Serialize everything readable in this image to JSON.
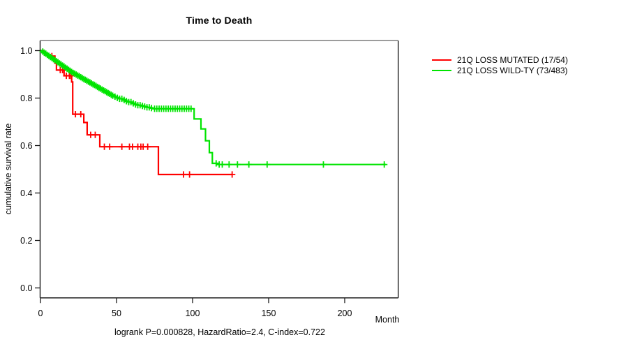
{
  "title": "Time to Death",
  "footer": "logrank P=0.000828, HazardRatio=2.4, C-index=0.722",
  "chart_data": {
    "type": "line",
    "variant": "kaplan-meier-step",
    "title": "Time to Death",
    "xlabel": "Month",
    "ylabel": "cumulative survival rate",
    "xticks": [
      0,
      50,
      100,
      150,
      200
    ],
    "ytick_labels": [
      "0.0",
      "0.2",
      "0.4",
      "0.6",
      "0.8",
      "1.0"
    ],
    "xlim": [
      0,
      235
    ],
    "ylim": [
      0.0,
      1.04
    ],
    "grid": false,
    "legend_position": "right-outside",
    "annotation": "logrank P=0.000828, HazardRatio=2.4, C-index=0.722",
    "frame_color_dark": "#1a1a1a",
    "frame_color_gray": "#7d7d7d",
    "series": [
      {
        "name": "21Q LOSS MUTATED (17/54)",
        "color": "#ff0000",
        "steps": [
          [
            0,
            1.0
          ],
          [
            2,
            0.991
          ],
          [
            4,
            0.982
          ],
          [
            6,
            0.977
          ],
          [
            9.5,
            0.947
          ],
          [
            10.5,
            0.918
          ],
          [
            15.5,
            0.894
          ],
          [
            20.5,
            0.868
          ],
          [
            21.2,
            0.732
          ],
          [
            28.5,
            0.697
          ],
          [
            30.7,
            0.645
          ],
          [
            39,
            0.595
          ],
          [
            77.5,
            0.478
          ]
        ],
        "end_month": 126,
        "censor_months": [
          7.5,
          13,
          14.5,
          17,
          19,
          20,
          23,
          26.5,
          33,
          36,
          42,
          45.5,
          53.5,
          58.5,
          60.5,
          64,
          66,
          67.5,
          70.5,
          94,
          98,
          126
        ]
      },
      {
        "name": "21Q LOSS WILD-TY (73/483)",
        "color": "#00e400",
        "steps": [
          [
            0,
            1.0
          ],
          [
            1,
            0.996
          ],
          [
            2,
            0.991
          ],
          [
            3,
            0.987
          ],
          [
            4,
            0.982
          ],
          [
            5,
            0.978
          ],
          [
            6,
            0.973
          ],
          [
            7,
            0.969
          ],
          [
            8,
            0.964
          ],
          [
            9,
            0.96
          ],
          [
            10,
            0.955
          ],
          [
            11,
            0.951
          ],
          [
            12,
            0.946
          ],
          [
            13,
            0.942
          ],
          [
            14,
            0.937
          ],
          [
            15,
            0.933
          ],
          [
            16,
            0.928
          ],
          [
            17,
            0.924
          ],
          [
            18,
            0.919
          ],
          [
            19,
            0.915
          ],
          [
            20,
            0.91
          ],
          [
            21,
            0.906
          ],
          [
            22,
            0.903
          ],
          [
            23,
            0.899
          ],
          [
            24,
            0.895
          ],
          [
            25,
            0.892
          ],
          [
            26,
            0.888
          ],
          [
            27,
            0.884
          ],
          [
            28,
            0.88
          ],
          [
            29,
            0.877
          ],
          [
            30,
            0.873
          ],
          [
            31,
            0.869
          ],
          [
            32,
            0.866
          ],
          [
            33,
            0.862
          ],
          [
            34,
            0.858
          ],
          [
            35,
            0.855
          ],
          [
            36,
            0.851
          ],
          [
            37,
            0.847
          ],
          [
            38,
            0.843
          ],
          [
            39,
            0.84
          ],
          [
            40,
            0.836
          ],
          [
            41,
            0.832
          ],
          [
            42,
            0.829
          ],
          [
            43,
            0.825
          ],
          [
            44,
            0.821
          ],
          [
            45,
            0.818
          ],
          [
            46,
            0.814
          ],
          [
            47,
            0.81
          ],
          [
            48,
            0.806
          ],
          [
            50,
            0.801
          ],
          [
            52,
            0.797
          ],
          [
            54,
            0.792
          ],
          [
            56,
            0.787
          ],
          [
            58,
            0.783
          ],
          [
            60,
            0.778
          ],
          [
            62,
            0.773
          ],
          [
            64,
            0.77
          ],
          [
            66,
            0.767
          ],
          [
            68,
            0.764
          ],
          [
            70,
            0.761
          ],
          [
            72,
            0.758
          ],
          [
            74,
            0.755
          ],
          [
            101,
            0.712
          ],
          [
            105.5,
            0.67
          ],
          [
            108.5,
            0.62
          ],
          [
            111,
            0.57
          ],
          [
            113,
            0.525
          ],
          [
            116,
            0.52
          ]
        ],
        "end_month": 227,
        "censor_months": [
          1.5,
          2.5,
          3.5,
          4.5,
          5.5,
          6.5,
          7.5,
          8.5,
          9.5,
          10.5,
          11.5,
          12.5,
          13.5,
          14.5,
          15.5,
          16.5,
          17.5,
          18.5,
          19.5,
          20.5,
          21.5,
          22.5,
          23.5,
          24.5,
          25.5,
          26.5,
          27.5,
          28.5,
          29.5,
          30.5,
          31.5,
          32.5,
          33.5,
          34.5,
          35.5,
          36.5,
          37.5,
          38.5,
          39.5,
          40.5,
          41.5,
          42.5,
          43.5,
          44.5,
          45.5,
          46.5,
          47.5,
          49,
          50.5,
          52,
          53.5,
          55,
          56.5,
          58,
          59.5,
          61,
          62.5,
          64,
          65.5,
          67,
          68.5,
          70,
          71.5,
          73,
          75,
          76.5,
          78,
          79.5,
          81,
          82.5,
          84,
          85.5,
          87,
          88.5,
          90,
          91.5,
          93,
          94.5,
          96,
          97.5,
          99,
          115.5,
          117.5,
          119.5,
          124,
          129.5,
          137,
          149,
          186,
          226
        ]
      }
    ]
  }
}
